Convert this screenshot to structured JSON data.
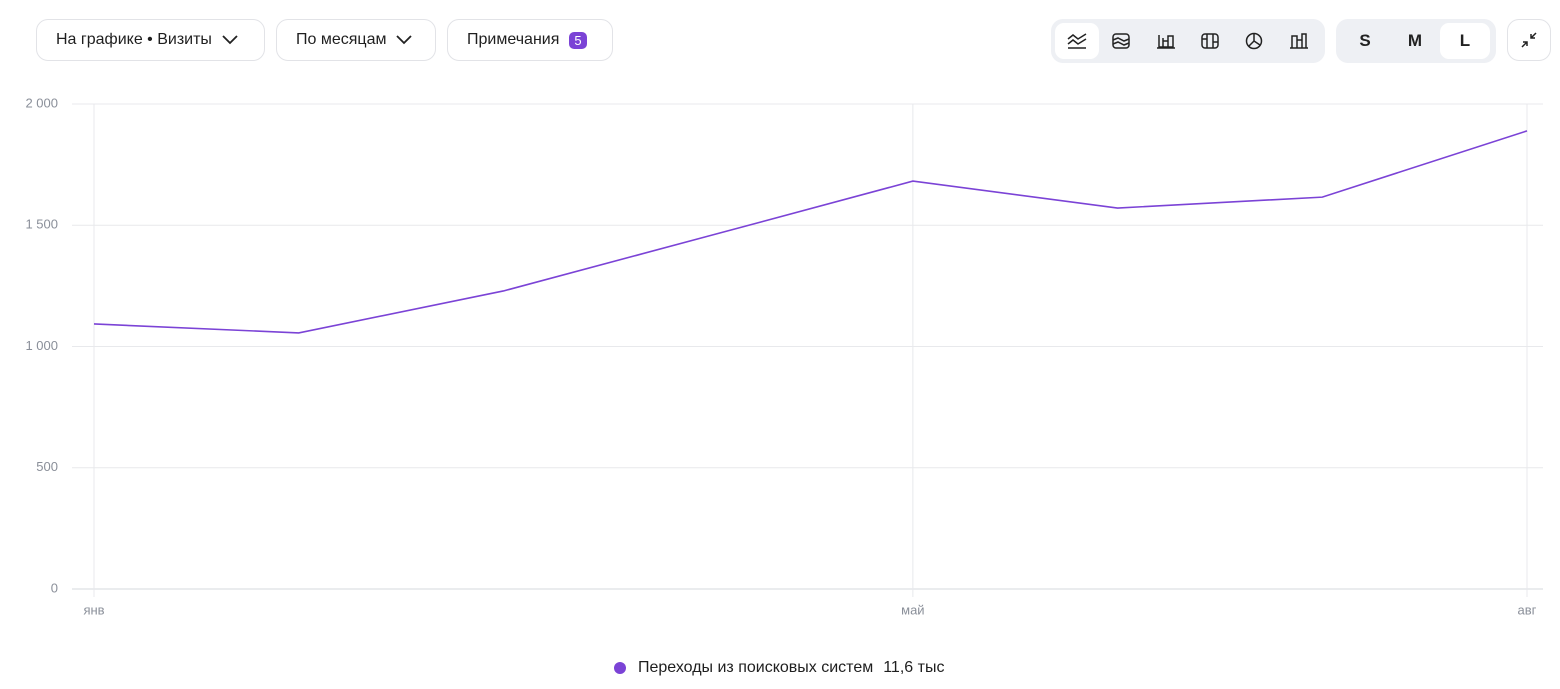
{
  "toolbar": {
    "metric_button": "На графике • Визиты",
    "period_button": "По месяцам",
    "notes_button": "Примечания",
    "notes_count": "5",
    "sizes": [
      "S",
      "M",
      "L"
    ]
  },
  "chart_data": {
    "type": "line",
    "categories": [
      "янв",
      null,
      null,
      null,
      "май",
      null,
      null,
      "авг"
    ],
    "series": [
      {
        "name": "Переходы из поисковых систем",
        "color": "#7b43d6",
        "total_label": "11,6 тыс",
        "values": [
          1093,
          1056,
          1229,
          1455,
          1682,
          1571,
          1616,
          1889
        ]
      }
    ],
    "ylim": [
      0,
      2000
    ],
    "yticks": [
      0,
      500,
      {
        "value": 1000,
        "label": "1 000"
      },
      {
        "value": 1500,
        "label": "1 500"
      },
      {
        "value": 2000,
        "label": "2 000"
      }
    ],
    "grid": true
  }
}
